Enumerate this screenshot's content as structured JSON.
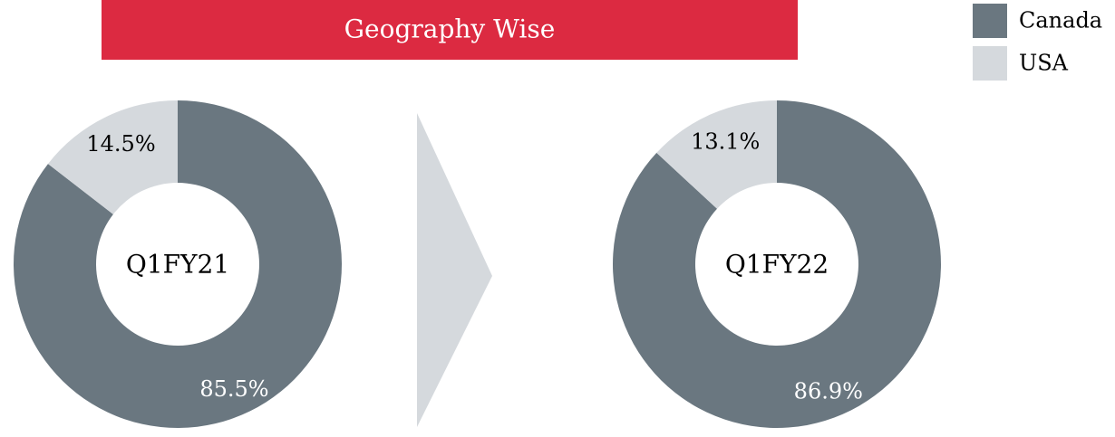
{
  "title": "Geography Wise",
  "chart_data": [
    {
      "type": "donut",
      "center_label": "Q1FY21",
      "categories": [
        "Canada",
        "USA"
      ],
      "values": [
        85.5,
        14.5
      ],
      "value_labels": [
        "85.5%",
        "14.5%"
      ],
      "colors": [
        "#6a7780",
        "#d5d9dd"
      ],
      "label_colors": [
        "#ffffff",
        "#000000"
      ]
    },
    {
      "type": "donut",
      "center_label": "Q1FY22",
      "categories": [
        "Canada",
        "USA"
      ],
      "values": [
        86.9,
        13.1
      ],
      "value_labels": [
        "86.9%",
        "13.1%"
      ],
      "colors": [
        "#6a7780",
        "#d5d9dd"
      ],
      "label_colors": [
        "#ffffff",
        "#000000"
      ]
    }
  ]
}
